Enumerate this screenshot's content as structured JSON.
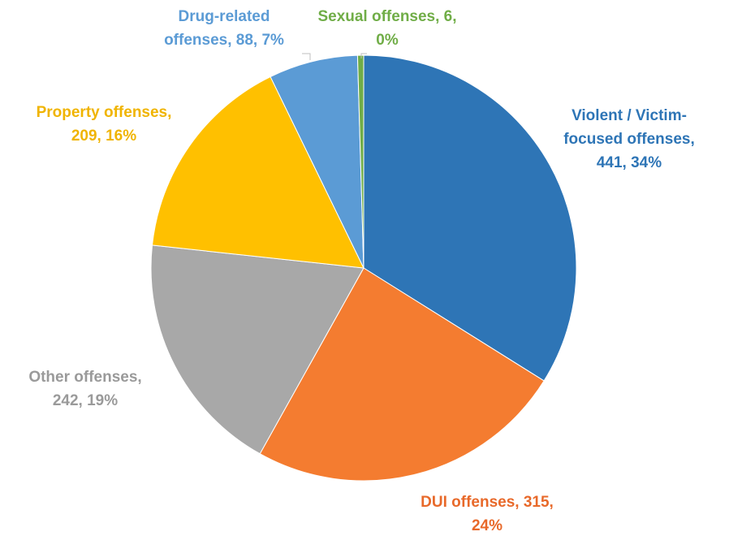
{
  "chart_data": {
    "type": "pie",
    "title": "",
    "slices": [
      {
        "label": "Violent / Victim-focused offenses",
        "value": 441,
        "percent": "34%",
        "color": "#2e75b6",
        "label_color": "#2e75b6",
        "label_lines": [
          "Violent / Victim-",
          "focused offenses,",
          "441, 34%"
        ]
      },
      {
        "label": "DUI offenses",
        "value": 315,
        "percent": "24%",
        "color": "#f47c30",
        "label_color": "#e8692a",
        "label_lines": [
          "DUI offenses, 315,",
          "24%"
        ]
      },
      {
        "label": "Other offenses",
        "value": 242,
        "percent": "19%",
        "color": "#a8a8a8",
        "label_color": "#9a9a9a",
        "label_lines": [
          "Other offenses,",
          "242, 19%"
        ]
      },
      {
        "label": "Property offenses",
        "value": 209,
        "percent": "16%",
        "color": "#ffc000",
        "label_color": "#f0b400",
        "label_lines": [
          "Property offenses,",
          "209, 16%"
        ]
      },
      {
        "label": "Drug-related offenses",
        "value": 88,
        "percent": "7%",
        "color": "#5b9bd5",
        "label_color": "#5b9bd5",
        "label_lines": [
          "Drug-related",
          "offenses, 88, 7%"
        ]
      },
      {
        "label": "Sexual offenses",
        "value": 6,
        "percent": "0%",
        "color": "#70ad47",
        "label_color": "#70ad47",
        "label_lines": [
          "Sexual offenses, 6,",
          "0%"
        ]
      }
    ]
  }
}
